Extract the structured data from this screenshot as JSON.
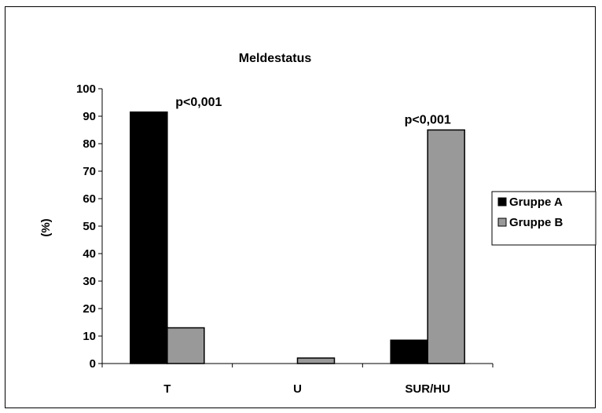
{
  "chart_data": {
    "type": "bar",
    "title": "Meldestatus",
    "xlabel": "",
    "ylabel": "(%)",
    "ylim": [
      0,
      100
    ],
    "yticks": [
      0,
      10,
      20,
      30,
      40,
      50,
      60,
      70,
      80,
      90,
      100
    ],
    "categories": [
      "T",
      "U",
      "SUR/HU"
    ],
    "series": [
      {
        "name": "Gruppe A",
        "color": "#000000",
        "values": [
          91.5,
          0,
          8.5
        ]
      },
      {
        "name": "Gruppe B",
        "color": "#999999",
        "values": [
          13,
          2,
          85
        ]
      }
    ],
    "annotations": [
      {
        "category": "T",
        "text": "p<0,001"
      },
      {
        "category": "SUR/HU",
        "text": "p<0,001"
      }
    ],
    "legend_position": "right",
    "grid": false
  }
}
